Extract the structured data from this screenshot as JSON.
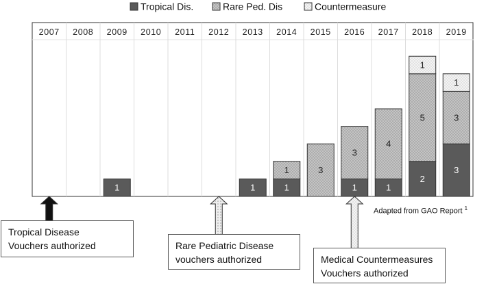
{
  "chart_data": {
    "type": "bar",
    "stacked": true,
    "categories": [
      "2007",
      "2008",
      "2009",
      "2010",
      "2011",
      "2012",
      "2013",
      "2014",
      "2015",
      "2016",
      "2017",
      "2018",
      "2019"
    ],
    "series": [
      {
        "name": "Tropical Dis.",
        "color": "#5a5a5a",
        "pattern": "solid",
        "values": [
          0,
          0,
          1,
          0,
          0,
          0,
          1,
          1,
          0,
          1,
          1,
          2,
          3
        ]
      },
      {
        "name": "Rare Ped. Dis",
        "color": "#bfbfbf",
        "pattern": "dots",
        "values": [
          0,
          0,
          0,
          0,
          0,
          0,
          0,
          1,
          3,
          3,
          4,
          5,
          3
        ]
      },
      {
        "name": "Countermeasure",
        "color": "#f2f2f2",
        "pattern": "fine-dots",
        "values": [
          0,
          0,
          0,
          0,
          0,
          0,
          0,
          0,
          0,
          0,
          0,
          1,
          1
        ]
      }
    ],
    "ylim": [
      0,
      8
    ],
    "legend_position": "top",
    "grid": "vertical year dividers"
  },
  "annotations": {
    "tropical": {
      "line1": "Tropical Disease",
      "line2": "Vouchers authorized",
      "year": "2007",
      "arrow_color": "#111111"
    },
    "rare": {
      "line1": "Rare Pediatric Disease",
      "line2": "vouchers authorized",
      "year": "2012",
      "arrow_color": "#d9d9d9"
    },
    "mcm": {
      "line1": "Medical Countermeasures",
      "line2": "Vouchers authorized",
      "year": "2016",
      "arrow_color": "#f2f2f2"
    },
    "source": {
      "text": "Adapted from GAO Report ",
      "sup": "1"
    }
  }
}
